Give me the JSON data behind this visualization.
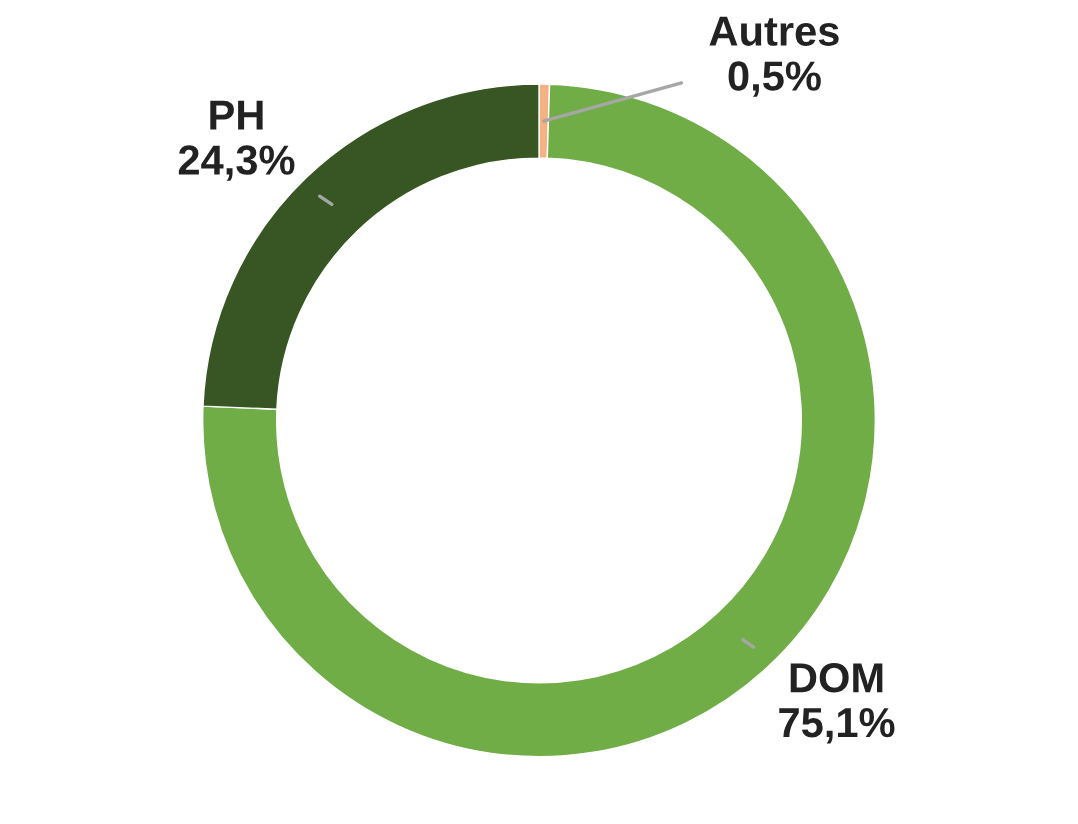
{
  "chart_data": {
    "type": "donut",
    "categories": [
      "Autres",
      "DOM",
      "PH"
    ],
    "values": [
      0.5,
      75.1,
      24.3
    ],
    "colors": [
      "#f4b183",
      "#70ad47",
      "#375623"
    ],
    "value_labels": [
      "0,5%",
      "75,1%",
      "24,3%"
    ],
    "legend": false
  }
}
